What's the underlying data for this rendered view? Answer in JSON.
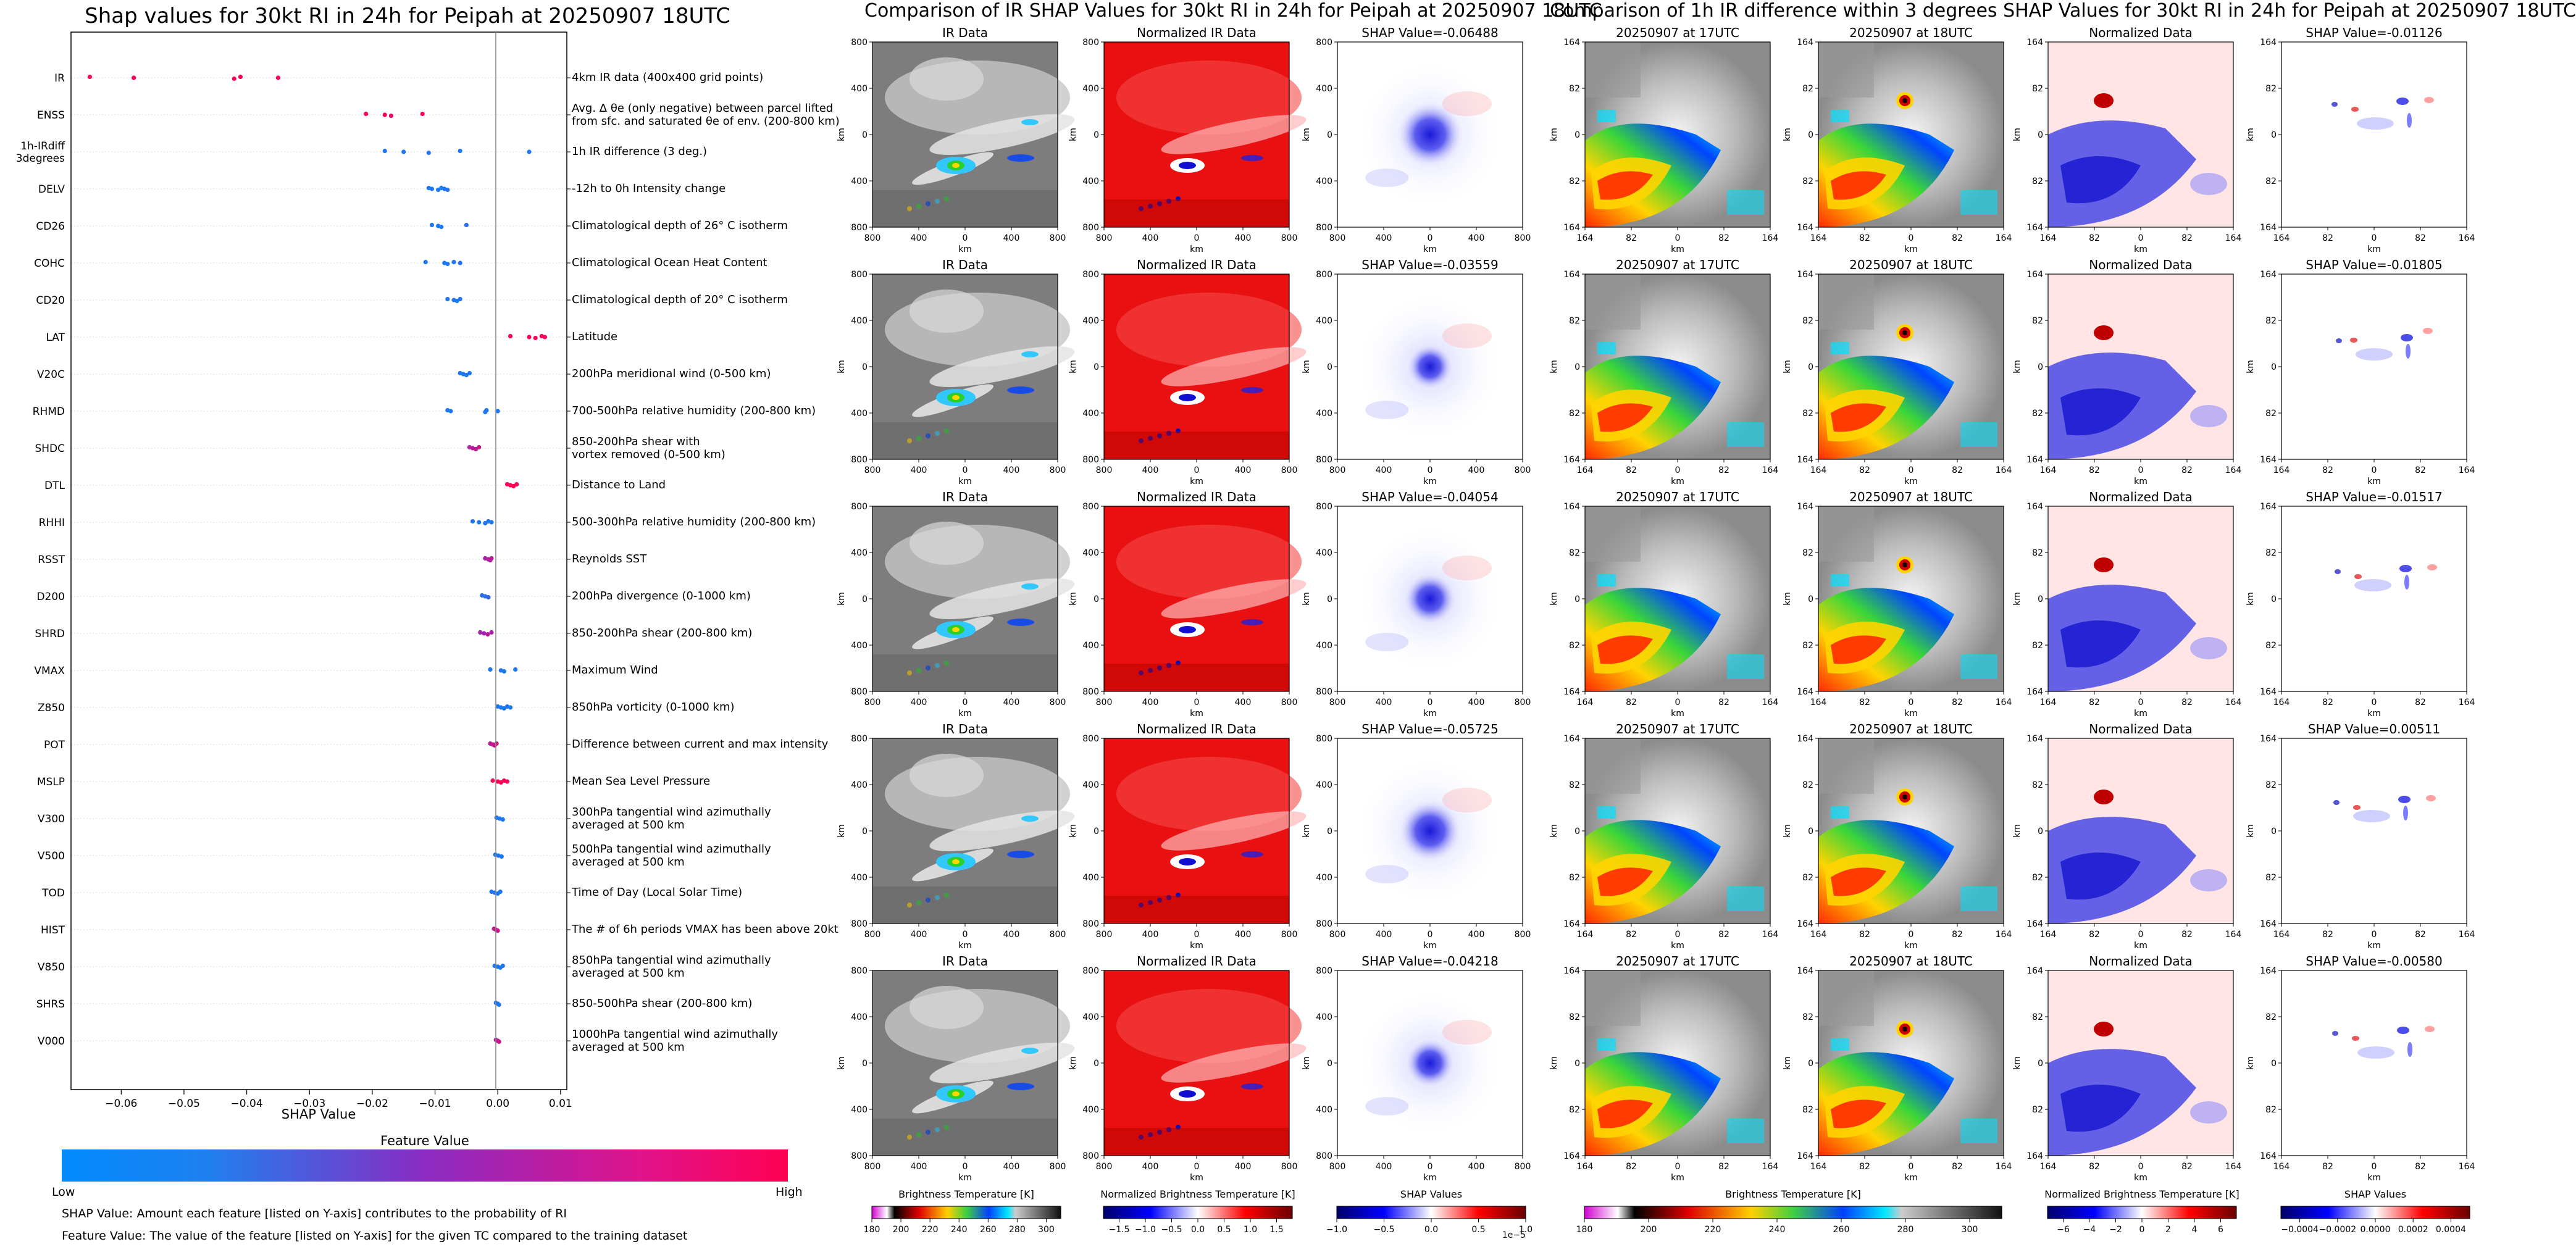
{
  "left_title": "Shap values for 30kt RI in 24h for Peipah at 20250907 18UTC",
  "mid_title": "Comparison of IR SHAP Values for 30kt RI in 24h for Peipah at 20250907 18UTC",
  "right_title": "Comparison of 1h IR difference within 3 degrees SHAP Values for 30kt RI in 24h for Peipah at 20250907 18UTC",
  "colors": {
    "low": "#1e88e5",
    "high": "#ff0052",
    "ir_red": "#e81010"
  },
  "chart_data": [
    {
      "type": "scatter",
      "name": "shap-beeswarm",
      "xlabel": "SHAP Value",
      "xlim": [
        -0.068,
        0.011
      ],
      "xticks": [
        -0.06,
        -0.05,
        -0.04,
        -0.03,
        -0.02,
        -0.01,
        0.0,
        0.01
      ],
      "xtick_labels": [
        "−0.06",
        "−0.05",
        "−0.04",
        "−0.03",
        "−0.02",
        "−0.01",
        "0.00",
        "0.01"
      ],
      "colorbar": {
        "title": "Feature Value",
        "low": "Low",
        "high": "High"
      },
      "features": [
        {
          "name": "IR",
          "desc": "4km IR data (400x400 grid points)",
          "points": [
            [
              -0.065,
              1
            ],
            [
              -0.058,
              1
            ],
            [
              -0.042,
              1
            ],
            [
              -0.041,
              1
            ],
            [
              -0.035,
              1
            ]
          ]
        },
        {
          "name": "ENSS",
          "desc": "Avg. Δ θe (only negative) between parcel lifted\nfrom sfc. and saturated θe of env. (200-800 km)",
          "points": [
            [
              -0.021,
              1
            ],
            [
              -0.018,
              1
            ],
            [
              -0.017,
              0.9
            ],
            [
              -0.012,
              1
            ]
          ]
        },
        {
          "name": "1h-IRdiff\n3degrees",
          "desc": "1h IR difference (3 deg.)",
          "points": [
            [
              -0.018,
              0.1
            ],
            [
              -0.015,
              0.1
            ],
            [
              -0.011,
              0.15
            ],
            [
              -0.006,
              0.1
            ],
            [
              0.005,
              0.1
            ]
          ]
        },
        {
          "name": "DELV",
          "desc": "-12h to 0h Intensity change",
          "points": [
            [
              -0.011,
              0.1
            ],
            [
              -0.0105,
              0.1
            ],
            [
              -0.0095,
              0.1
            ],
            [
              -0.009,
              0.1
            ],
            [
              -0.0085,
              0.1
            ],
            [
              -0.008,
              0.15
            ]
          ]
        },
        {
          "name": "CD26",
          "desc": "Climatological depth of 26° C isotherm",
          "points": [
            [
              -0.0105,
              0.1
            ],
            [
              -0.0095,
              0.1
            ],
            [
              -0.009,
              0.1
            ],
            [
              -0.005,
              0.15
            ]
          ]
        },
        {
          "name": "COHC",
          "desc": "Climatological Ocean Heat Content",
          "points": [
            [
              -0.0115,
              0.1
            ],
            [
              -0.0085,
              0.1
            ],
            [
              -0.008,
              0.1
            ],
            [
              -0.007,
              0.1
            ],
            [
              -0.006,
              0.15
            ]
          ]
        },
        {
          "name": "CD20",
          "desc": "Climatological depth of 20° C isotherm",
          "points": [
            [
              -0.008,
              0.1
            ],
            [
              -0.007,
              0.1
            ],
            [
              -0.0065,
              0.1
            ],
            [
              -0.006,
              0.1
            ]
          ]
        },
        {
          "name": "LAT",
          "desc": "Latitude",
          "points": [
            [
              0.002,
              1
            ],
            [
              0.005,
              1
            ],
            [
              0.006,
              1
            ],
            [
              0.007,
              1
            ],
            [
              0.0075,
              0.95
            ]
          ]
        },
        {
          "name": "V20C",
          "desc": "200hPa meridional wind (0-500 km)",
          "points": [
            [
              -0.006,
              0.1
            ],
            [
              -0.0055,
              0.1
            ],
            [
              -0.005,
              0.1
            ],
            [
              -0.0045,
              0.1
            ]
          ]
        },
        {
          "name": "RHMD",
          "desc": "700-500hPa relative humidity (200-800 km)",
          "points": [
            [
              -0.008,
              0.1
            ],
            [
              -0.0075,
              0.1
            ],
            [
              -0.002,
              0.1
            ],
            [
              -0.0018,
              0.1
            ],
            [
              0.0,
              0.1
            ]
          ]
        },
        {
          "name": "SHDC",
          "desc": "850-200hPa shear with\nvortex removed (0-500 km)",
          "points": [
            [
              -0.0045,
              0.65
            ],
            [
              -0.004,
              0.7
            ],
            [
              -0.0035,
              0.7
            ],
            [
              -0.003,
              0.75
            ]
          ]
        },
        {
          "name": "DTL",
          "desc": "Distance to Land",
          "points": [
            [
              0.0015,
              0.95
            ],
            [
              0.002,
              1
            ],
            [
              0.0025,
              1
            ],
            [
              0.003,
              0.95
            ]
          ]
        },
        {
          "name": "RHHI",
          "desc": "500-300hPa relative humidity (200-800 km)",
          "points": [
            [
              -0.004,
              0.1
            ],
            [
              -0.003,
              0.1
            ],
            [
              -0.002,
              0.1
            ],
            [
              -0.0015,
              0.1
            ],
            [
              -0.001,
              0.1
            ]
          ]
        },
        {
          "name": "RSST",
          "desc": "Reynolds SST",
          "points": [
            [
              -0.002,
              0.65
            ],
            [
              -0.0015,
              0.65
            ],
            [
              -0.0012,
              0.7
            ],
            [
              -0.001,
              0.7
            ]
          ]
        },
        {
          "name": "D200",
          "desc": "200hPa divergence (0-1000 km)",
          "points": [
            [
              -0.0025,
              0.15
            ],
            [
              -0.002,
              0.15
            ],
            [
              -0.0015,
              0.2
            ]
          ]
        },
        {
          "name": "SHRD",
          "desc": "850-200hPa shear (200-800 km)",
          "points": [
            [
              -0.0028,
              0.6
            ],
            [
              -0.0022,
              0.6
            ],
            [
              -0.0016,
              0.65
            ],
            [
              -0.001,
              0.65
            ]
          ]
        },
        {
          "name": "VMAX",
          "desc": "Maximum Wind",
          "points": [
            [
              -0.0012,
              0.1
            ],
            [
              0.0005,
              0.1
            ],
            [
              0.001,
              0.1
            ],
            [
              0.0028,
              0.1
            ]
          ]
        },
        {
          "name": "Z850",
          "desc": "850hPa vorticity (0-1000 km)",
          "points": [
            [
              0.0,
              0.1
            ],
            [
              0.0005,
              0.1
            ],
            [
              0.001,
              0.1
            ],
            [
              0.0015,
              0.1
            ],
            [
              0.002,
              0.1
            ]
          ]
        },
        {
          "name": "POT",
          "desc": "Difference between current and max intensity",
          "points": [
            [
              -0.0012,
              0.7
            ],
            [
              -0.0008,
              0.75
            ],
            [
              -0.0005,
              0.75
            ],
            [
              -0.0002,
              0.8
            ]
          ]
        },
        {
          "name": "MSLP",
          "desc": "Mean Sea Level Pressure",
          "points": [
            [
              -0.0008,
              0.95
            ],
            [
              0.0,
              1
            ],
            [
              0.0005,
              1
            ],
            [
              0.001,
              0.95
            ],
            [
              0.0015,
              1
            ]
          ]
        },
        {
          "name": "V300",
          "desc": "300hPa tangential wind azimuthally\naveraged at 500 km",
          "points": [
            [
              -0.0002,
              0.1
            ],
            [
              0.0003,
              0.1
            ],
            [
              0.0008,
              0.1
            ]
          ]
        },
        {
          "name": "V500",
          "desc": "500hPa tangential wind azimuthally\naveraged at 500 km",
          "points": [
            [
              -0.0004,
              0.1
            ],
            [
              0.0001,
              0.1
            ],
            [
              0.0006,
              0.1
            ]
          ]
        },
        {
          "name": "TOD",
          "desc": "Time of Day (Local Solar Time)",
          "points": [
            [
              -0.001,
              0.1
            ],
            [
              -0.0005,
              0.1
            ],
            [
              0.0,
              0.1
            ],
            [
              0.0004,
              0.1
            ]
          ]
        },
        {
          "name": "HIST",
          "desc": "The # of 6h periods VMAX has been above 20kt",
          "points": [
            [
              -0.0006,
              0.7
            ],
            [
              -0.0003,
              0.75
            ],
            [
              0.0,
              0.75
            ]
          ]
        },
        {
          "name": "V850",
          "desc": "850hPa tangential wind azimuthally\naveraged at 500 km",
          "points": [
            [
              -0.0005,
              0.1
            ],
            [
              0.0,
              0.1
            ],
            [
              0.0004,
              0.1
            ],
            [
              0.0008,
              0.1
            ]
          ]
        },
        {
          "name": "SHRS",
          "desc": "850-500hPa shear (200-800 km)",
          "points": [
            [
              -0.0003,
              0.1
            ],
            [
              0.0,
              0.1
            ],
            [
              0.0002,
              0.1
            ]
          ]
        },
        {
          "name": "V000",
          "desc": "1000hPa tangential wind azimuthally\naveraged at 500 km",
          "points": [
            [
              -0.0003,
              0.7
            ],
            [
              0.0,
              0.7
            ],
            [
              0.0002,
              0.75
            ]
          ]
        }
      ]
    },
    {
      "type": "heatmap",
      "name": "ir-shap-comparison",
      "columns": [
        "IR Data",
        "Normalized IR Data",
        "SHAP Value"
      ],
      "shap_values": [
        "-0.06488",
        "-0.03559",
        "-0.04054",
        "-0.05725",
        "-0.04218"
      ],
      "shap_prefix": "SHAP Value=",
      "axis_label": "km",
      "ticks": [
        "800",
        "400",
        "0",
        "400",
        "800"
      ],
      "colorbars": [
        {
          "title": "Brightness Temperature [K]",
          "ticks": [
            "180",
            "200",
            "220",
            "240",
            "260",
            "280",
            "300"
          ],
          "range": [
            180,
            310
          ]
        },
        {
          "title": "Normalized Brightness Temperature [K]",
          "ticks": [
            "−1.5",
            "−1.0",
            "−0.5",
            "0.0",
            "0.5",
            "1.0",
            "1.5"
          ],
          "range": [
            -1.8,
            1.8
          ]
        },
        {
          "title": "SHAP Values",
          "ticks": [
            "−1.0",
            "−0.5",
            "0.0",
            "0.5",
            "1.0"
          ],
          "range": [
            -1.0,
            1.0
          ],
          "scale": "1e−5"
        }
      ]
    },
    {
      "type": "heatmap",
      "name": "ir-diff-shap-comparison",
      "columns": [
        "20250907 at 17UTC",
        "20250907 at 18UTC",
        "Normalized Data",
        "SHAP Value"
      ],
      "shap_values": [
        "-0.01126",
        "-0.01805",
        "-0.01517",
        "0.00511",
        "-0.00580"
      ],
      "shap_prefix": "SHAP Value=",
      "axis_label": "km",
      "ticks": [
        "164",
        "82",
        "0",
        "82",
        "164"
      ],
      "colorbars": [
        {
          "title": "Brightness Temperature [K]",
          "ticks": [
            "180",
            "200",
            "220",
            "240",
            "260",
            "280",
            "300"
          ],
          "range": [
            180,
            310
          ]
        },
        {
          "title": "Normalized Brightness Temperature [K]",
          "ticks": [
            "−6",
            "−4",
            "−2",
            "0",
            "2",
            "4",
            "6"
          ],
          "range": [
            -7.2,
            7.2
          ]
        },
        {
          "title": "SHAP Values",
          "ticks": [
            "−0.0004",
            "−0.0002",
            "0.0000",
            "0.0002",
            "0.0004"
          ],
          "range": [
            -0.0005,
            0.0005
          ]
        }
      ]
    }
  ],
  "notes": [
    "SHAP Value: Amount each feature [listed on Y-axis] contributes to the probability of RI",
    "Feature Value: The value of the feature [listed on Y-axis] for the given TC compared to the training dataset"
  ]
}
